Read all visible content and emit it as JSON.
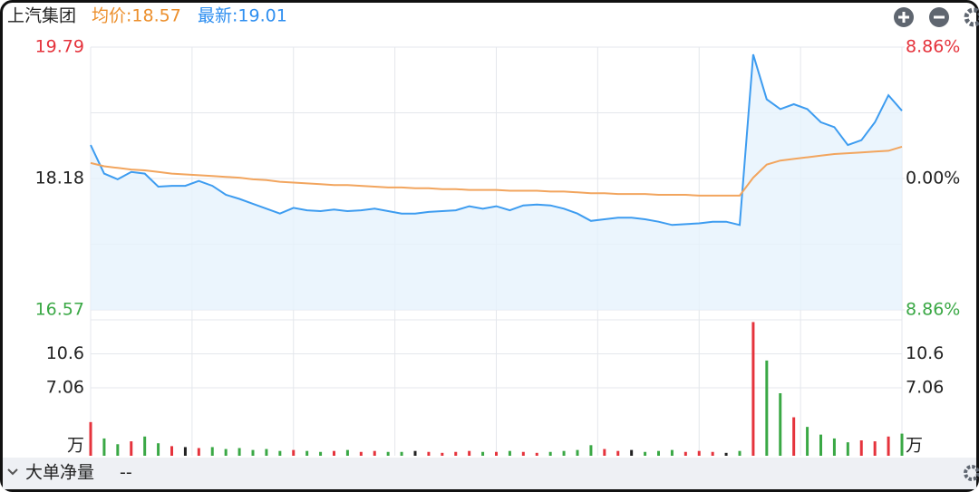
{
  "header": {
    "stock_name": "上汽集团",
    "avg_label": "均价:18.57",
    "latest_label": "最新:19.01"
  },
  "footer": {
    "label": "大单净量",
    "value": "--"
  },
  "chart_data": [
    {
      "type": "line",
      "x": [
        0,
        4,
        8,
        12,
        16,
        20,
        24,
        28,
        32,
        36,
        40,
        44,
        48,
        52,
        56,
        60,
        64,
        68,
        72,
        76,
        80,
        84,
        88,
        92,
        96,
        100,
        104,
        108,
        112,
        116,
        120,
        124,
        128,
        132,
        136,
        140,
        144,
        148,
        152,
        156,
        160,
        164,
        168,
        172,
        176,
        180,
        184,
        188,
        192,
        196,
        200,
        204,
        208,
        212,
        216,
        220,
        224,
        228,
        232,
        236,
        240
      ],
      "xlim": [
        0,
        240
      ],
      "ylim": [
        16.57,
        19.79
      ],
      "yticks": [
        16.57,
        18.18,
        19.79
      ],
      "y2lim": [
        -8.86,
        8.86
      ],
      "y2ticks": [
        {
          "value": -8.86,
          "label": "8.86%"
        },
        {
          "value": 0,
          "label": "0.00%"
        },
        {
          "value": 8.86,
          "label": "8.86%"
        }
      ],
      "grid": true,
      "series": [
        {
          "color": "#3d9cf0",
          "fill": "#e6f2fd",
          "values": [
            18.59,
            18.24,
            18.17,
            18.26,
            18.24,
            18.08,
            18.09,
            18.09,
            18.15,
            18.09,
            17.98,
            17.93,
            17.87,
            17.81,
            17.75,
            17.82,
            17.79,
            17.78,
            17.8,
            17.78,
            17.79,
            17.81,
            17.78,
            17.75,
            17.75,
            17.77,
            17.78,
            17.79,
            17.84,
            17.81,
            17.84,
            17.79,
            17.85,
            17.86,
            17.85,
            17.81,
            17.75,
            17.66,
            17.68,
            17.7,
            17.7,
            17.68,
            17.65,
            17.61,
            17.62,
            17.63,
            17.65,
            17.65,
            17.61,
            19.7,
            19.15,
            19.03,
            19.09,
            19.03,
            18.87,
            18.81,
            18.59,
            18.65,
            18.87,
            19.2,
            19.01
          ]
        },
        {
          "color": "#f2a55e",
          "values": [
            18.37,
            18.33,
            18.31,
            18.29,
            18.28,
            18.26,
            18.24,
            18.23,
            18.22,
            18.21,
            18.2,
            18.19,
            18.17,
            18.16,
            18.14,
            18.13,
            18.12,
            18.11,
            18.1,
            18.1,
            18.09,
            18.08,
            18.07,
            18.07,
            18.06,
            18.06,
            18.05,
            18.05,
            18.04,
            18.04,
            18.04,
            18.03,
            18.03,
            18.03,
            18.02,
            18.02,
            18.01,
            18.0,
            18.0,
            17.99,
            17.99,
            17.99,
            17.98,
            17.98,
            17.98,
            17.97,
            17.97,
            17.97,
            17.97,
            18.19,
            18.35,
            18.4,
            18.42,
            18.44,
            18.46,
            18.48,
            18.49,
            18.5,
            18.51,
            18.52,
            18.57
          ]
        }
      ]
    },
    {
      "type": "bar",
      "unit": "万",
      "ylim": [
        0,
        14.13
      ],
      "yticks": [
        7.06,
        10.6
      ],
      "values": [
        3.5,
        1.8,
        1.2,
        1.5,
        2.0,
        1.3,
        1.0,
        0.9,
        0.8,
        0.9,
        0.7,
        0.8,
        0.6,
        0.7,
        0.5,
        0.6,
        0.5,
        0.4,
        0.5,
        0.6,
        0.4,
        0.5,
        0.4,
        0.4,
        0.5,
        0.4,
        0.3,
        0.4,
        0.5,
        0.4,
        0.4,
        0.5,
        0.4,
        0.3,
        0.4,
        0.5,
        0.6,
        1.1,
        0.7,
        0.5,
        0.6,
        0.4,
        0.5,
        0.6,
        0.4,
        0.5,
        0.4,
        0.3,
        0.5,
        13.9,
        9.9,
        6.5,
        4.0,
        3.0,
        2.2,
        1.8,
        1.4,
        1.6,
        1.5,
        2.0,
        2.3
      ]
    }
  ]
}
